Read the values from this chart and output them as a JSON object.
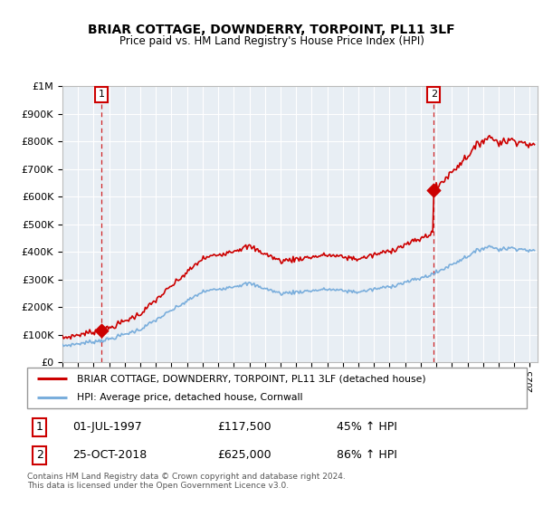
{
  "title": "BRIAR COTTAGE, DOWNDERRY, TORPOINT, PL11 3LF",
  "subtitle": "Price paid vs. HM Land Registry's House Price Index (HPI)",
  "legend_property": "BRIAR COTTAGE, DOWNDERRY, TORPOINT, PL11 3LF (detached house)",
  "legend_hpi": "HPI: Average price, detached house, Cornwall",
  "sale1_date": "01-JUL-1997",
  "sale1_price": 117500,
  "sale1_label": "£117,500",
  "sale1_pct": "45% ↑ HPI",
  "sale2_date": "25-OCT-2018",
  "sale2_price": 625000,
  "sale2_label": "£625,000",
  "sale2_pct": "86% ↑ HPI",
  "footnote": "Contains HM Land Registry data © Crown copyright and database right 2024.\nThis data is licensed under the Open Government Licence v3.0.",
  "property_color": "#cc0000",
  "hpi_color": "#7aaedc",
  "dashed_color": "#cc0000",
  "background_color": "#e8eef4",
  "ylim": [
    0,
    1000000
  ],
  "sale1_x": 1997.5,
  "sale2_x": 2018.83,
  "xmin": 1995,
  "xmax": 2025.5
}
